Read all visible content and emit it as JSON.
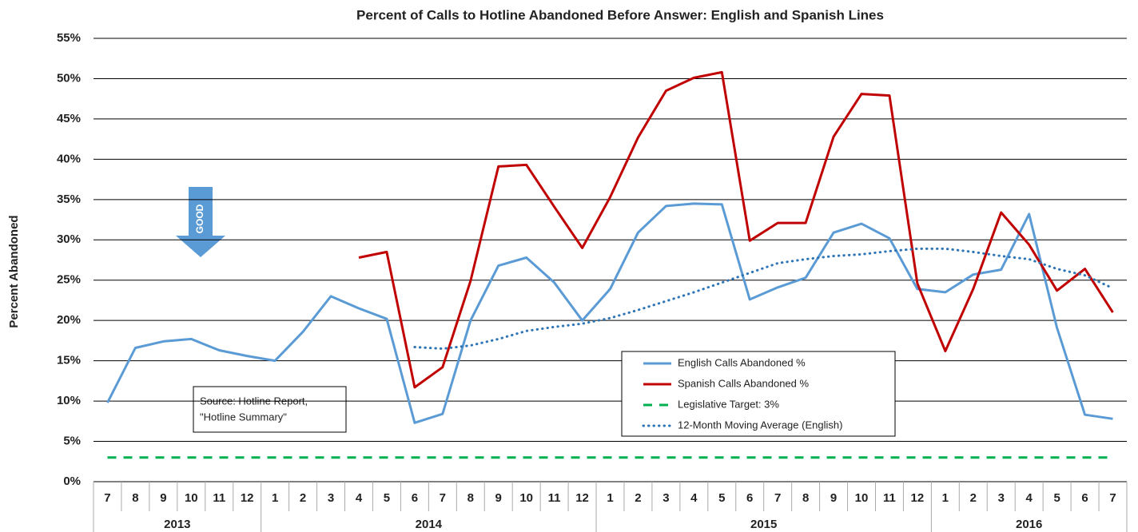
{
  "chart_data": {
    "type": "line",
    "title": "Percent of Calls to Hotline Abandoned Before Answer: English and Spanish Lines",
    "ylabel": "Percent Abandoned",
    "groups": [
      {
        "label": "2013",
        "categories": [
          "7",
          "8",
          "9",
          "10",
          "11",
          "12"
        ]
      },
      {
        "label": "2014",
        "categories": [
          "1",
          "2",
          "3",
          "4",
          "5",
          "6",
          "7",
          "8",
          "9",
          "10",
          "11",
          "12"
        ]
      },
      {
        "label": "2015",
        "categories": [
          "1",
          "2",
          "3",
          "4",
          "5",
          "6",
          "7",
          "8",
          "9",
          "10",
          "11",
          "12"
        ]
      },
      {
        "label": "2016",
        "categories": [
          "1",
          "2",
          "3",
          "4",
          "5",
          "6",
          "7"
        ]
      }
    ],
    "ylim": [
      0,
      55
    ],
    "yticks": [
      {
        "value": 0,
        "label": "0%"
      },
      {
        "value": 5,
        "label": "5%"
      },
      {
        "value": 10,
        "label": "10%"
      },
      {
        "value": 15,
        "label": "15%"
      },
      {
        "value": 20,
        "label": "20%"
      },
      {
        "value": 25,
        "label": "25%"
      },
      {
        "value": 30,
        "label": "30%"
      },
      {
        "value": 35,
        "label": "35%"
      },
      {
        "value": 40,
        "label": "40%"
      },
      {
        "value": 45,
        "label": "45%"
      },
      {
        "value": 50,
        "label": "50%"
      },
      {
        "value": 55,
        "label": "55%"
      }
    ],
    "grid": true,
    "series": [
      {
        "name": "English Calls Abandoned %",
        "color": "#5b9bd5",
        "style": "solid",
        "values": [
          9.8,
          16.6,
          17.4,
          17.7,
          16.3,
          15.6,
          15.0,
          18.6,
          23.0,
          21.5,
          20.2,
          7.3,
          8.4,
          20.0,
          26.8,
          27.8,
          24.7,
          20.0,
          23.9,
          30.9,
          34.2,
          34.5,
          34.4,
          22.6,
          24.1,
          25.3,
          30.9,
          32.0,
          30.2,
          23.9,
          23.5,
          25.7,
          26.3,
          33.2,
          19.1,
          8.3,
          7.8
        ]
      },
      {
        "name": "Spanish Calls Abandoned %",
        "color": "#c00000",
        "style": "solid",
        "values": [
          null,
          null,
          null,
          null,
          null,
          null,
          null,
          null,
          null,
          27.8,
          28.5,
          11.7,
          14.2,
          24.9,
          39.1,
          39.3,
          34.1,
          29.0,
          35.3,
          42.7,
          48.5,
          50.1,
          50.8,
          29.9,
          32.1,
          32.1,
          42.8,
          48.1,
          47.9,
          24.6,
          16.2,
          23.9,
          33.4,
          29.4,
          23.7,
          26.4,
          21.0
        ]
      },
      {
        "name": "Legislative Target: 3%",
        "color": "#00b050",
        "style": "dashed",
        "values": [
          3,
          3,
          3,
          3,
          3,
          3,
          3,
          3,
          3,
          3,
          3,
          3,
          3,
          3,
          3,
          3,
          3,
          3,
          3,
          3,
          3,
          3,
          3,
          3,
          3,
          3,
          3,
          3,
          3,
          3,
          3,
          3,
          3,
          3,
          3,
          3,
          3
        ]
      },
      {
        "name": "12-Month Moving Average (English)",
        "color": "#2e75b6",
        "style": "dotted",
        "values": [
          null,
          null,
          null,
          null,
          null,
          null,
          null,
          null,
          null,
          null,
          null,
          16.7,
          16.5,
          16.9,
          17.7,
          18.7,
          19.2,
          19.6,
          20.3,
          21.3,
          22.4,
          23.5,
          24.7,
          25.9,
          27.1,
          27.6,
          28.0,
          28.2,
          28.6,
          28.9,
          28.9,
          28.5,
          28.0,
          27.6,
          26.4,
          25.6,
          24.0
        ]
      }
    ],
    "annotations": [
      "GOOD"
    ],
    "source": [
      "Source: Hotline Report,",
      "\"Hotline Summary\""
    ]
  }
}
